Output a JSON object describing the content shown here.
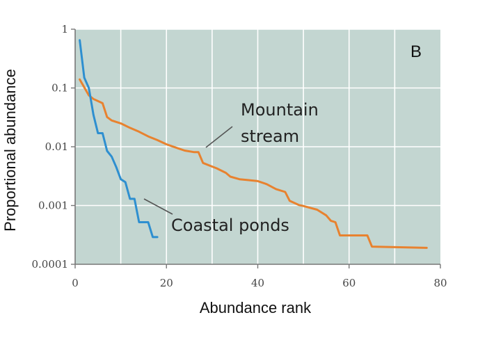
{
  "chart_data": {
    "type": "line",
    "panel_label": "B",
    "xlabel": "Abundance rank",
    "ylabel": "Proportional abundance",
    "xlim": [
      0,
      80
    ],
    "ylim": [
      0.0001,
      1
    ],
    "yscale": "log",
    "x_ticks": [
      0,
      20,
      40,
      60,
      80
    ],
    "x_tick_labels": [
      "0",
      "20",
      "40",
      "60",
      "80"
    ],
    "y_ticks": [
      1,
      0.1,
      0.01,
      0.001,
      0.0001
    ],
    "y_tick_labels": [
      "1",
      "0.1",
      "0.01",
      "0.001",
      "0.0001"
    ],
    "grid": true,
    "colors": {
      "background": "#c3d6d1",
      "grid": "#ffffff",
      "mountain": "#e8822f",
      "coastal": "#2e8fd0",
      "leader": "#555555"
    },
    "series": [
      {
        "name": "Mountain stream",
        "label_lines": [
          "Mountain",
          "stream"
        ],
        "color": "#e8822f",
        "points": [
          [
            1,
            0.14
          ],
          [
            3,
            0.075
          ],
          [
            4,
            0.065
          ],
          [
            6,
            0.055
          ],
          [
            7,
            0.032
          ],
          [
            8,
            0.028
          ],
          [
            10,
            0.025
          ],
          [
            12,
            0.021
          ],
          [
            14,
            0.018
          ],
          [
            16,
            0.015
          ],
          [
            18,
            0.013
          ],
          [
            20,
            0.011
          ],
          [
            22,
            0.0097
          ],
          [
            24,
            0.0086
          ],
          [
            26,
            0.0081
          ],
          [
            27,
            0.0081
          ],
          [
            28,
            0.0053
          ],
          [
            30,
            0.0046
          ],
          [
            31,
            0.0043
          ],
          [
            33,
            0.0036
          ],
          [
            34,
            0.0031
          ],
          [
            36,
            0.0028
          ],
          [
            38,
            0.0027
          ],
          [
            40,
            0.0026
          ],
          [
            42,
            0.0023
          ],
          [
            44,
            0.0019
          ],
          [
            46,
            0.0017
          ],
          [
            47,
            0.0012
          ],
          [
            49,
            0.00102
          ],
          [
            50,
            0.00098
          ],
          [
            53,
            0.00085
          ],
          [
            55,
            0.00068
          ],
          [
            56,
            0.00055
          ],
          [
            57,
            0.00052
          ],
          [
            58,
            0.00031
          ],
          [
            64,
            0.00031
          ],
          [
            65,
            0.0002
          ],
          [
            77,
            0.00019
          ]
        ]
      },
      {
        "name": "Coastal ponds",
        "label_lines": [
          "Coastal ponds"
        ],
        "color": "#2e8fd0",
        "points": [
          [
            1,
            0.65
          ],
          [
            2,
            0.15
          ],
          [
            3,
            0.1
          ],
          [
            4,
            0.035
          ],
          [
            5,
            0.017
          ],
          [
            6,
            0.017
          ],
          [
            7,
            0.0085
          ],
          [
            8,
            0.0068
          ],
          [
            9,
            0.0045
          ],
          [
            10,
            0.0028
          ],
          [
            11,
            0.0025
          ],
          [
            12,
            0.0013
          ],
          [
            13,
            0.0013
          ],
          [
            14,
            0.00052
          ],
          [
            15,
            0.00052
          ],
          [
            16,
            0.00052
          ],
          [
            17,
            0.00029
          ],
          [
            18,
            0.00029
          ]
        ]
      }
    ]
  }
}
